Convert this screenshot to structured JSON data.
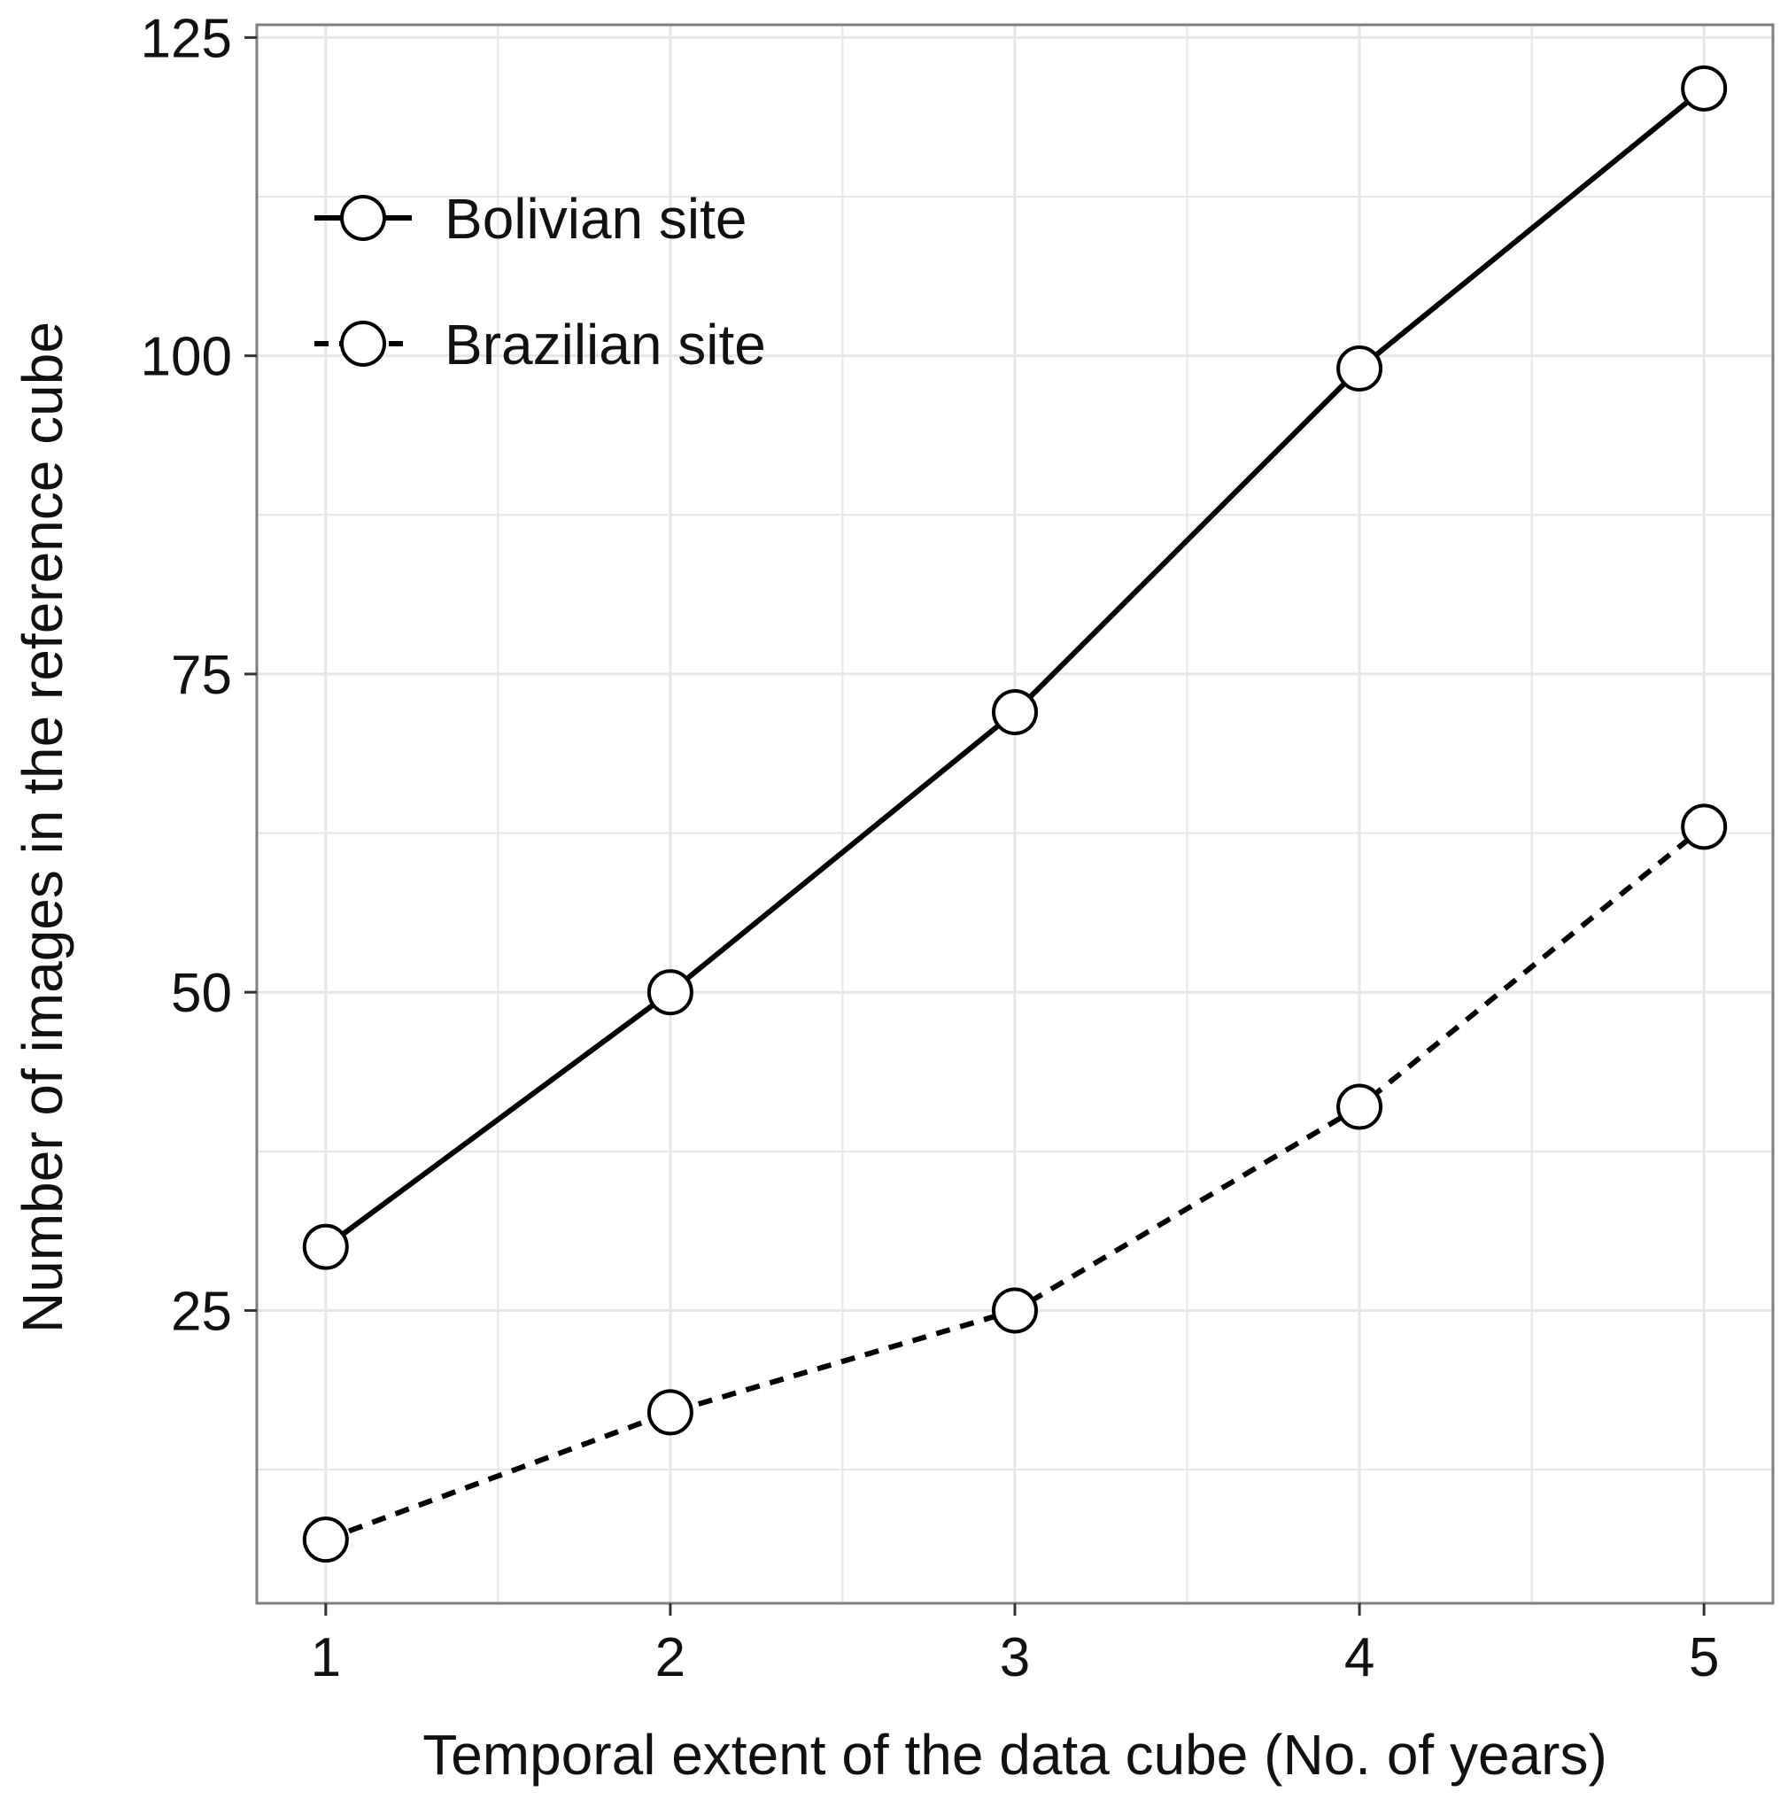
{
  "chart_data": {
    "type": "line",
    "title": "",
    "xlabel": "Temporal extent of the data cube (No. of years)",
    "ylabel": "Number of images in the reference cube",
    "x": [
      1,
      2,
      3,
      4,
      5
    ],
    "xticks": [
      "1",
      "2",
      "3",
      "4",
      "5"
    ],
    "yticks": [
      "25",
      "50",
      "75",
      "100",
      "125"
    ],
    "xlim": [
      0.8,
      5.2
    ],
    "ylim": [
      2,
      126
    ],
    "grid": true,
    "legend_position": "top-left",
    "series": [
      {
        "name": "Bolivian site",
        "values": [
          30,
          50,
          72,
          99,
          121
        ],
        "line_style": "solid"
      },
      {
        "name": "Brazilian site",
        "values": [
          7,
          17,
          25,
          41,
          63
        ],
        "line_style": "dashed"
      }
    ],
    "colors": {
      "line": "#000000",
      "marker_fill": "#ffffff",
      "grid": "#e6e6e6",
      "frame": "#7f7f7f"
    }
  }
}
